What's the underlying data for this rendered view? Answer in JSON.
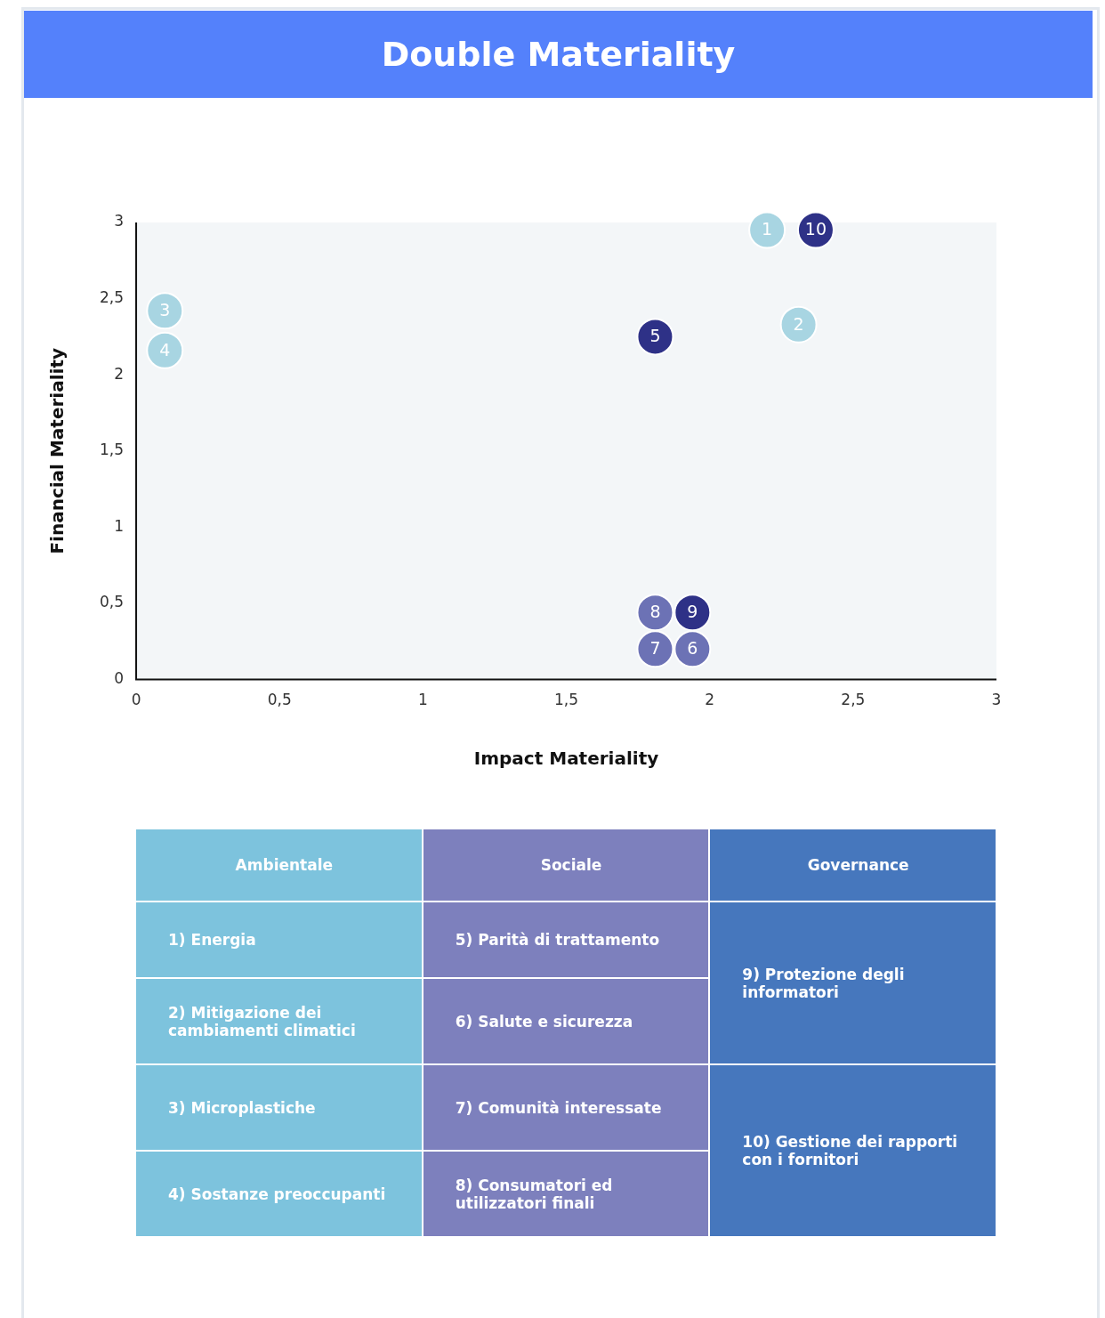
{
  "chart_data": {
    "type": "scatter",
    "title": "Double Materiality",
    "xlabel": "Impact Materiality",
    "ylabel": "Financial Materiality",
    "xlim": [
      0,
      3
    ],
    "xticks": [
      0,
      {
        "value": 0.5,
        "label": "0,5"
      },
      1,
      {
        "value": 1.5,
        "label": "1,5"
      },
      2,
      {
        "value": 2.5,
        "label": "2,5"
      },
      3
    ],
    "ylim": [
      0,
      3
    ],
    "yticks": [
      0,
      {
        "value": 0.5,
        "label": "0,5"
      },
      1,
      {
        "value": 1.5,
        "label": "1,5"
      },
      2,
      {
        "value": 2.5,
        "label": "2,5"
      },
      3
    ],
    "grid": false,
    "legend": false,
    "marker": "circle",
    "series": [
      {
        "x": [
          2.2,
          2.31,
          0.1,
          0.1,
          1.81,
          1.94,
          1.81,
          1.81,
          1.94,
          2.37
        ],
        "values": [
          2.95,
          2.33,
          2.42,
          2.16,
          2.25,
          0.2,
          0.2,
          0.44,
          0.44,
          2.95
        ],
        "colors": [
          "#a8d5e2",
          "#a8d5e2",
          "#a8d5e2",
          "#a8d5e2",
          "#2e3187",
          "#6c72b5",
          "#6c72b5",
          "#6c72b5",
          "#2e3187",
          "#2e3187"
        ]
      }
    ],
    "annotations": [
      {
        "text": "1",
        "x": 2.2,
        "y": 2.95
      },
      {
        "text": "2",
        "x": 2.31,
        "y": 2.33
      },
      {
        "text": "3",
        "x": 0.1,
        "y": 2.42
      },
      {
        "text": "4",
        "x": 0.1,
        "y": 2.16
      },
      {
        "text": "5",
        "x": 1.81,
        "y": 2.25
      },
      {
        "text": "6",
        "x": 1.94,
        "y": 0.2
      },
      {
        "text": "7",
        "x": 1.81,
        "y": 0.2
      },
      {
        "text": "8",
        "x": 1.81,
        "y": 0.44
      },
      {
        "text": "9",
        "x": 1.94,
        "y": 0.44
      },
      {
        "text": "10",
        "x": 2.37,
        "y": 2.95
      },
      "Ambientale",
      "Sociale",
      "Governance",
      "1) Energia",
      "2) Mitigazione dei cambiamenti climatici",
      "3) Microplastiche",
      "4) Sostanze preoccupanti",
      "5) Parità di trattamento",
      "6) Salute e sicurezza",
      "7) Comunità interessate",
      "8) Consumatori ed utilizzatori finali",
      "9) Protezione degli informatori",
      "10) Gestione dei rapporti con i fornitori"
    ]
  }
}
